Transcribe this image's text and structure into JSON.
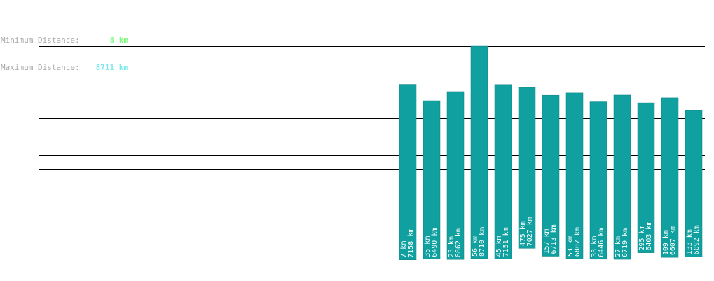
{
  "stats": {
    "min_label": "Minimum Distance:",
    "min_value": "8 km",
    "max_label": "Maximum Distance:",
    "max_value": "8711 km"
  },
  "colors": {
    "bar": "#10a0a0",
    "bar_stroke": "#0c8080",
    "label_text": "#ffffff",
    "line": "#000000",
    "min_value": "#7cfc7c",
    "max_value": "#7fe9ea"
  },
  "chart_data": {
    "type": "bar",
    "title": "",
    "xlabel": "",
    "ylabel": "",
    "orientation": "vertical-floating",
    "unit": "km",
    "ylim": [
      0,
      8711
    ],
    "reference_lines": [
      8711,
      7158,
      6490,
      5782,
      5076,
      4276,
      3696,
      3192,
      2796
    ],
    "series": [
      {
        "values": [
          {
            "low": 7,
            "high": 7158
          },
          {
            "low": 35,
            "high": 6490
          },
          {
            "low": 23,
            "high": 6862
          },
          {
            "low": 56,
            "high": 8710
          },
          {
            "low": 45,
            "high": 7151
          },
          {
            "low": 475,
            "high": 7027
          },
          {
            "low": 157,
            "high": 6713
          },
          {
            "low": 53,
            "high": 6807
          },
          {
            "low": 33,
            "high": 6446
          },
          {
            "low": 27,
            "high": 6719
          },
          {
            "low": 295,
            "high": 6403
          },
          {
            "low": 109,
            "high": 6607
          },
          {
            "low": 133,
            "high": 6092
          }
        ]
      }
    ]
  }
}
